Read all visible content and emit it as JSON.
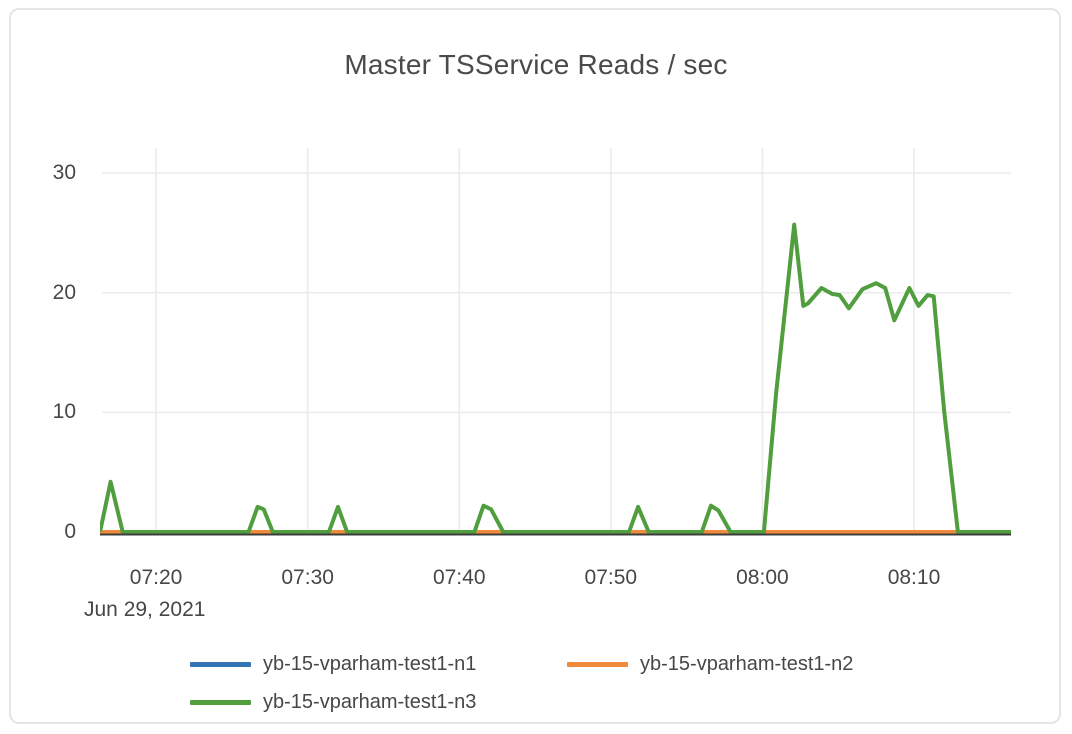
{
  "chart_data": {
    "type": "line",
    "title": "Master TSService Reads / sec",
    "x_axis": {
      "date_label": "Jun 29, 2021",
      "range_minutes_after_midnight": [
        436.3,
        496.4
      ],
      "ticks": [
        {
          "t": 440,
          "label": "07:20"
        },
        {
          "t": 450,
          "label": "07:30"
        },
        {
          "t": 460,
          "label": "07:40"
        },
        {
          "t": 470,
          "label": "07:50"
        },
        {
          "t": 480,
          "label": "08:00"
        },
        {
          "t": 490,
          "label": "08:10"
        }
      ]
    },
    "y_axis": {
      "range": [
        0,
        32.1
      ],
      "ticks": [
        {
          "v": 0,
          "label": "0"
        },
        {
          "v": 10,
          "label": "10"
        },
        {
          "v": 20,
          "label": "20"
        },
        {
          "v": 30,
          "label": "30"
        }
      ]
    },
    "legend_position": "bottom",
    "grid": true,
    "series": [
      {
        "name": "yb-15-vparham-test1-n1",
        "color": "#3274b5",
        "points": [
          [
            436.3,
            0
          ],
          [
            496.4,
            0
          ]
        ]
      },
      {
        "name": "yb-15-vparham-test1-n2",
        "color": "#f18b3b",
        "points": [
          [
            436.3,
            0
          ],
          [
            496.4,
            0
          ]
        ]
      },
      {
        "name": "yb-15-vparham-test1-n3",
        "color": "#509e3d",
        "points": [
          [
            436.3,
            0
          ],
          [
            437.0,
            4.2
          ],
          [
            437.8,
            0
          ],
          [
            446.1,
            0
          ],
          [
            446.7,
            2.1
          ],
          [
            447.1,
            1.9
          ],
          [
            447.7,
            0
          ],
          [
            451.4,
            0
          ],
          [
            452.0,
            2.1
          ],
          [
            452.6,
            0
          ],
          [
            461.0,
            0
          ],
          [
            461.6,
            2.2
          ],
          [
            462.1,
            1.9
          ],
          [
            462.9,
            0
          ],
          [
            471.2,
            0
          ],
          [
            471.8,
            2.1
          ],
          [
            472.5,
            0
          ],
          [
            476.0,
            0
          ],
          [
            476.6,
            2.2
          ],
          [
            477.1,
            1.8
          ],
          [
            477.9,
            0
          ],
          [
            480.1,
            0
          ],
          [
            480.9,
            11.5
          ],
          [
            482.1,
            25.7
          ],
          [
            482.7,
            18.9
          ],
          [
            483.0,
            19.1
          ],
          [
            483.9,
            20.4
          ],
          [
            484.6,
            19.9
          ],
          [
            485.1,
            19.8
          ],
          [
            485.7,
            18.7
          ],
          [
            486.6,
            20.3
          ],
          [
            487.5,
            20.8
          ],
          [
            488.1,
            20.4
          ],
          [
            488.7,
            17.7
          ],
          [
            489.7,
            20.4
          ],
          [
            490.3,
            18.9
          ],
          [
            490.9,
            19.8
          ],
          [
            491.3,
            19.7
          ],
          [
            492.0,
            10.0
          ],
          [
            492.9,
            0
          ],
          [
            496.4,
            0
          ]
        ]
      }
    ],
    "colors": {
      "grid": "#ebebeb",
      "axis_line": "#3c3c3c",
      "text": "#474747",
      "card_border": "#e5e5e5"
    }
  }
}
